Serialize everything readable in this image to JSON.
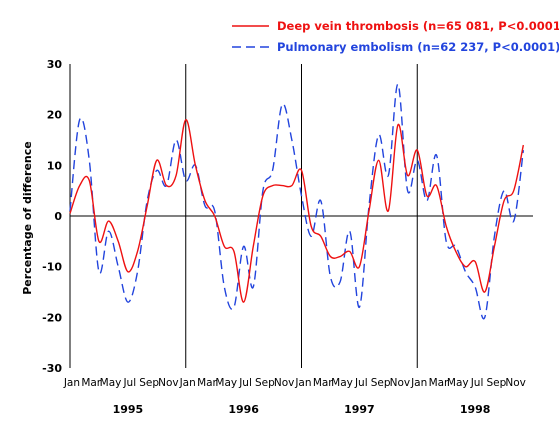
{
  "chart_data": {
    "type": "line",
    "title": "",
    "xlabel": "",
    "ylabel": "Percentage of difference",
    "ylim": [
      -30,
      30
    ],
    "yticks": [
      -30,
      -20,
      -10,
      0,
      10,
      20,
      30
    ],
    "grid": false,
    "legend_position": "top-right",
    "month_ticks": [
      "Jan",
      "Mar",
      "May",
      "Jul",
      "Sep",
      "Nov"
    ],
    "years": [
      "1995",
      "1996",
      "1997",
      "1998"
    ],
    "x": [
      "1995-01",
      "1995-02",
      "1995-03",
      "1995-04",
      "1995-05",
      "1995-06",
      "1995-07",
      "1995-08",
      "1995-09",
      "1995-10",
      "1995-11",
      "1995-12",
      "1996-01",
      "1996-02",
      "1996-03",
      "1996-04",
      "1996-05",
      "1996-06",
      "1996-07",
      "1996-08",
      "1996-09",
      "1996-10",
      "1996-11",
      "1996-12",
      "1997-01",
      "1997-02",
      "1997-03",
      "1997-04",
      "1997-05",
      "1997-06",
      "1997-07",
      "1997-08",
      "1997-09",
      "1997-10",
      "1997-11",
      "1997-12",
      "1998-01",
      "1998-02",
      "1998-03",
      "1998-04",
      "1998-05",
      "1998-06",
      "1998-07",
      "1998-08",
      "1998-09",
      "1998-10",
      "1998-11",
      "1998-12"
    ],
    "series": [
      {
        "name": "Deep vein thrombosis (n=65 081, P<0.0001)",
        "color": "#ee1111",
        "dash": "solid",
        "values": [
          0.5,
          6,
          7,
          -5,
          -1,
          -5,
          -11,
          -7,
          2,
          11,
          6,
          8,
          19,
          10,
          3,
          0,
          -6,
          -7,
          -17,
          -6,
          4,
          6,
          6,
          6,
          9,
          -2,
          -4,
          -8,
          -8,
          -7,
          -10,
          1,
          11,
          1,
          18,
          8,
          13,
          4,
          6,
          -2,
          -7,
          -10,
          -9,
          -15,
          -6,
          3,
          5,
          14
        ]
      },
      {
        "name": "Pulmonary embolism (n=62 237, P<0.0001)",
        "color": "#2244dd",
        "dash": "dashed",
        "values": [
          1,
          19,
          11,
          -11,
          -3,
          -10,
          -17,
          -11,
          3,
          9,
          6,
          15,
          7,
          10,
          2,
          1,
          -14,
          -18,
          -6,
          -14,
          5,
          9,
          22,
          15,
          4,
          -4,
          3,
          -12,
          -13,
          -3,
          -18,
          2,
          16,
          8,
          26,
          5,
          11,
          3,
          12,
          -5,
          -6,
          -11,
          -14,
          -20,
          -4,
          5,
          -1,
          13
        ]
      }
    ]
  }
}
